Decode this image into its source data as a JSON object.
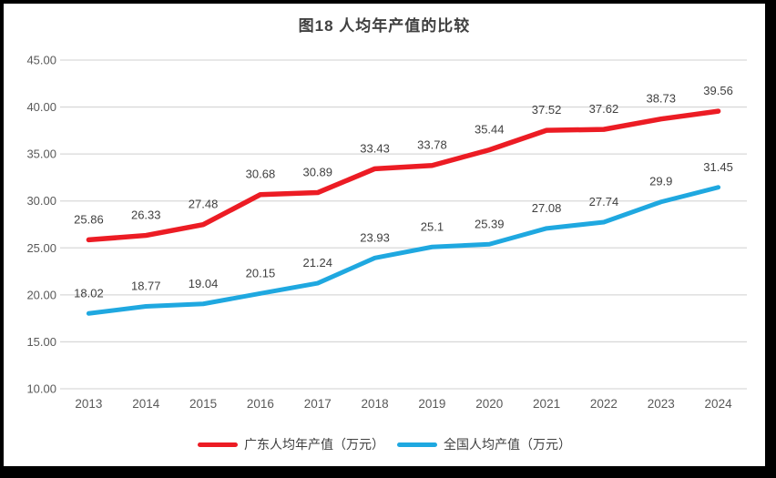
{
  "chart_data": {
    "type": "line",
    "title": "图18 人均年产值的比较",
    "categories": [
      "2013",
      "2014",
      "2015",
      "2016",
      "2017",
      "2018",
      "2019",
      "2020",
      "2021",
      "2022",
      "2023",
      "2024"
    ],
    "series": [
      {
        "name": "广东人均年产值（万元）",
        "color": "#EC1C24",
        "values": [
          25.86,
          26.33,
          27.48,
          30.68,
          30.89,
          33.43,
          33.78,
          35.44,
          37.52,
          37.62,
          38.73,
          39.56
        ]
      },
      {
        "name": "全国人均产值（万元）",
        "color": "#1FA8E0",
        "values": [
          18.02,
          18.77,
          19.04,
          20.15,
          21.24,
          23.93,
          25.1,
          25.39,
          27.08,
          27.74,
          29.9,
          31.45
        ]
      }
    ],
    "ylim": [
      10,
      45
    ],
    "ytick_step": 5,
    "ytick_format_decimals": 2,
    "grid": true,
    "legend_position": "bottom",
    "data_labels": true,
    "colors": {
      "grid_line": "#D9D9D9",
      "axis_text": "#595959",
      "data_label_text": "#404040",
      "title_text": "#404040",
      "plot_background": "#FFFFFF",
      "frame_border": "#000000"
    }
  }
}
